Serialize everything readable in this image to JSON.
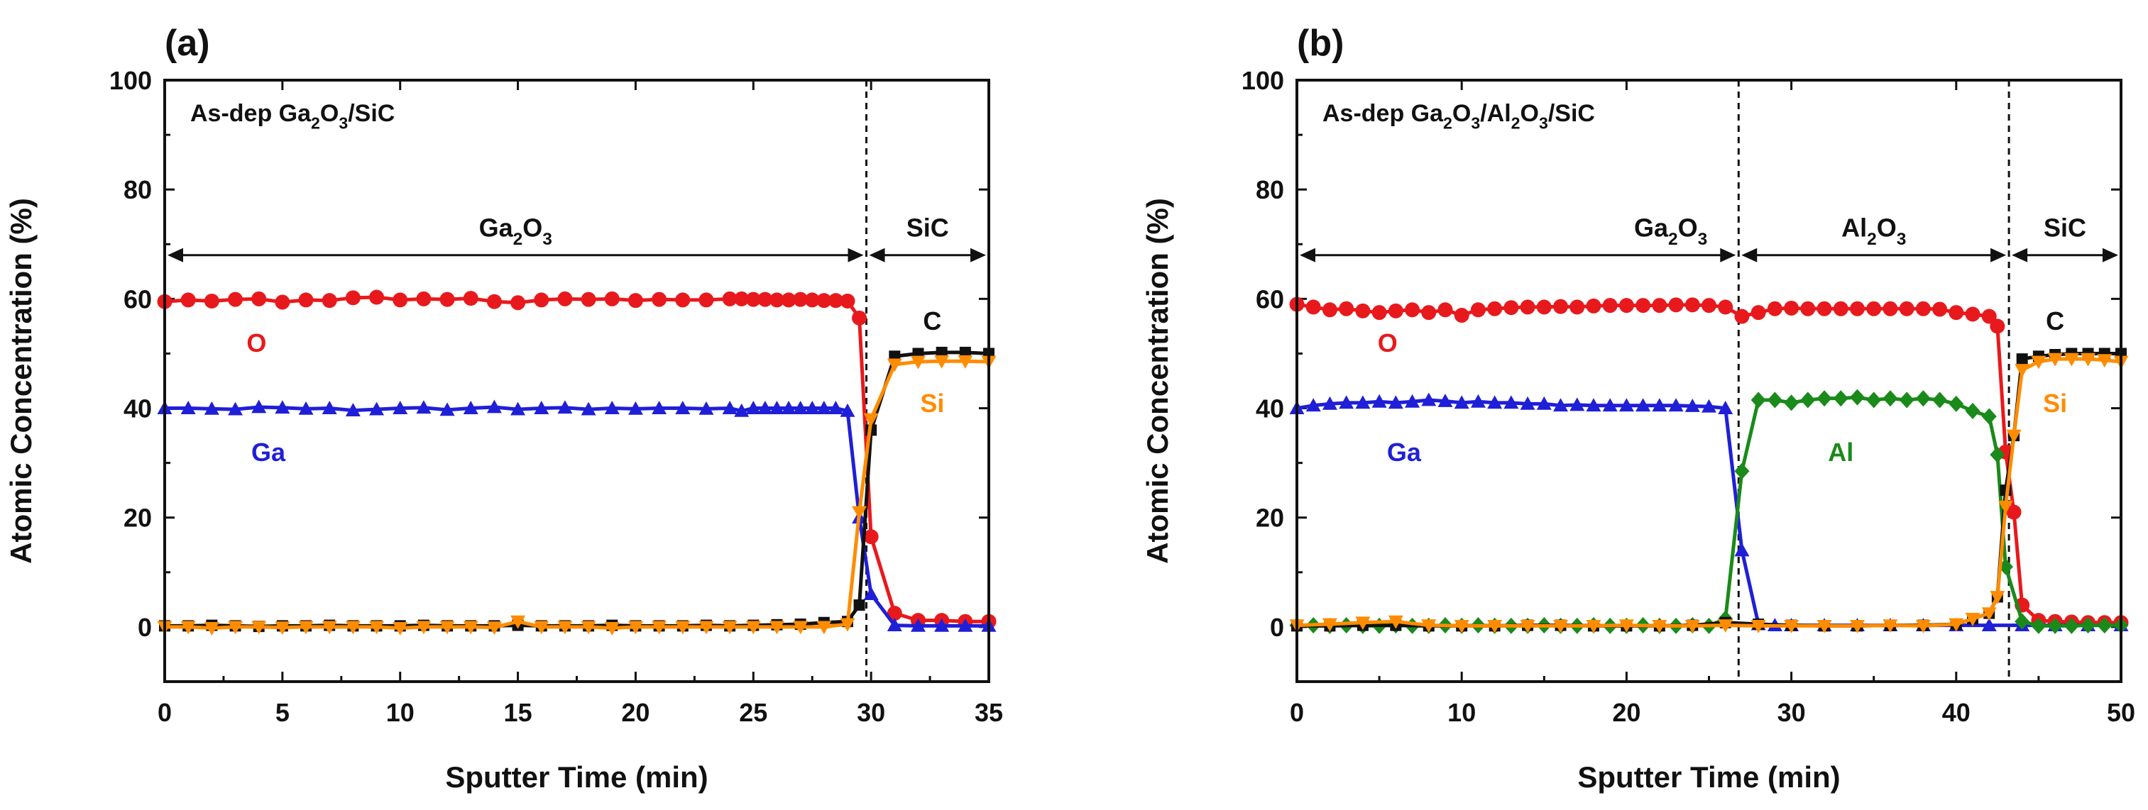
{
  "chart_data": [
    {
      "panel_label": "(a)",
      "type": "line",
      "inset_title_parts": [
        {
          "t": "As-dep Ga"
        },
        {
          "t": "2",
          "sub": true
        },
        {
          "t": "O"
        },
        {
          "t": "3",
          "sub": true
        },
        {
          "t": "/SiC"
        }
      ],
      "xlabel": "Sputter Time (min)",
      "ylabel": "Atomic Concentration (%)",
      "xlim": [
        0,
        35
      ],
      "ylim": [
        -10,
        100
      ],
      "x_ticks": [
        "0",
        "5",
        "10",
        "15",
        "20",
        "25",
        "30",
        "35"
      ],
      "y_ticks": [
        "0",
        "20",
        "40",
        "60",
        "80",
        "100"
      ],
      "x_tick_values": [
        0,
        5,
        10,
        15,
        20,
        25,
        30,
        35
      ],
      "y_tick_values": [
        0,
        20,
        40,
        60,
        80,
        100
      ],
      "boundaries": [
        29.8
      ],
      "regions": [
        {
          "parts": [
            {
              "t": "Ga"
            },
            {
              "t": "2",
              "sub": true
            },
            {
              "t": "O"
            },
            {
              "t": "3",
              "sub": true
            }
          ],
          "x_from": 0,
          "x_to": 29.8,
          "y": 68
        },
        {
          "parts": [
            {
              "t": "SiC"
            }
          ],
          "x_from": 29.8,
          "x_to": 35,
          "y": 68
        }
      ],
      "series": [
        {
          "name": "O",
          "color": "#e8191c",
          "marker": "circle",
          "x": [
            0,
            1,
            2,
            3,
            4,
            5,
            6,
            7,
            8,
            9,
            10,
            11,
            12,
            13,
            14,
            15,
            16,
            17,
            18,
            19,
            20,
            21,
            22,
            23,
            24,
            24.5,
            25,
            25.5,
            26,
            26.5,
            27,
            27.5,
            28,
            28.5,
            29,
            29.5,
            30,
            31,
            32,
            33,
            34,
            35
          ],
          "y": [
            59.5,
            59.8,
            59.6,
            59.9,
            60,
            59.4,
            59.8,
            59.7,
            60.2,
            60.3,
            59.8,
            60,
            59.9,
            60.1,
            59.5,
            59.3,
            59.8,
            60,
            59.9,
            60,
            59.7,
            59.9,
            59.8,
            59.8,
            60,
            60,
            59.9,
            59.9,
            59.8,
            59.8,
            59.9,
            59.8,
            59.7,
            59.7,
            59.6,
            56.5,
            16.5,
            2.5,
            1.2,
            1.2,
            1,
            1
          ],
          "label": "O",
          "label_at": [
            3.9,
            52
          ]
        },
        {
          "name": "Ga",
          "color": "#1f1fd8",
          "marker": "triangle",
          "x": [
            0,
            1,
            2,
            3,
            4,
            5,
            6,
            7,
            8,
            9,
            10,
            11,
            12,
            13,
            14,
            15,
            16,
            17,
            18,
            19,
            20,
            21,
            22,
            23,
            24,
            24.5,
            25,
            25.5,
            26,
            26.5,
            27,
            27.5,
            28,
            28.5,
            29,
            29.5,
            30,
            31,
            32,
            33,
            34,
            35
          ],
          "y": [
            40,
            40,
            39.9,
            39.8,
            40.2,
            40.1,
            39.9,
            40,
            39.6,
            39.8,
            40,
            40.1,
            39.7,
            40,
            40.2,
            39.8,
            40,
            40.1,
            39.8,
            40,
            39.9,
            40,
            40,
            39.9,
            40,
            39.5,
            40,
            40,
            40,
            40,
            40,
            40,
            40,
            40,
            39.5,
            20,
            6,
            0.3,
            0.2,
            0.2,
            0.2,
            0.2
          ],
          "label": "Ga",
          "label_at": [
            4.4,
            32
          ]
        },
        {
          "name": "C",
          "color": "#111111",
          "marker": "square",
          "x": [
            0,
            1,
            2,
            3,
            4,
            5,
            6,
            7,
            8,
            9,
            10,
            11,
            12,
            13,
            14,
            15,
            16,
            17,
            18,
            19,
            20,
            21,
            22,
            23,
            24,
            25,
            26,
            27,
            28,
            29,
            29.5,
            30,
            31,
            32,
            33,
            34,
            35
          ],
          "y": [
            0.2,
            0.2,
            0.3,
            0.2,
            0.1,
            0.2,
            0.2,
            0.3,
            0.2,
            0.2,
            0.2,
            0.3,
            0.2,
            0.2,
            0.2,
            0.3,
            0.2,
            0.2,
            0.2,
            0.3,
            0.2,
            0.2,
            0.2,
            0.3,
            0.2,
            0.3,
            0.4,
            0.5,
            0.8,
            1,
            4,
            36,
            49.5,
            50,
            50.2,
            50.2,
            50
          ],
          "label": "C",
          "label_at": [
            32.6,
            56
          ]
        },
        {
          "name": "Si",
          "color": "#ff8c00",
          "marker": "triangle-down",
          "x": [
            0,
            1,
            2,
            3,
            4,
            5,
            6,
            7,
            8,
            9,
            10,
            11,
            12,
            13,
            14,
            15,
            16,
            17,
            18,
            19,
            20,
            21,
            22,
            23,
            24,
            25,
            26,
            27,
            28,
            29,
            29.5,
            30,
            31,
            32,
            33,
            34,
            35
          ],
          "y": [
            0,
            0,
            -0.2,
            0,
            0,
            -0.1,
            0,
            0,
            0,
            0,
            -0.2,
            0,
            0,
            0,
            -0.1,
            1,
            0,
            0,
            0,
            -0.2,
            0,
            0,
            0,
            0,
            0,
            0,
            0,
            0,
            0,
            0.5,
            21,
            38,
            48,
            48.5,
            48.6,
            48.6,
            48.5
          ],
          "label": "Si",
          "label_at": [
            32.6,
            41
          ]
        }
      ]
    },
    {
      "panel_label": "(b)",
      "type": "line",
      "inset_title_parts": [
        {
          "t": "As-dep Ga"
        },
        {
          "t": "2",
          "sub": true
        },
        {
          "t": "O"
        },
        {
          "t": "3",
          "sub": true
        },
        {
          "t": "/Al"
        },
        {
          "t": "2",
          "sub": true
        },
        {
          "t": "O"
        },
        {
          "t": "3",
          "sub": true
        },
        {
          "t": "/SiC"
        }
      ],
      "xlabel": "Sputter Time (min)",
      "ylabel": "Atomic Concentration (%)",
      "xlim": [
        0,
        50
      ],
      "ylim": [
        -10,
        100
      ],
      "x_ticks": [
        "0",
        "10",
        "20",
        "30",
        "40",
        "50"
      ],
      "y_ticks": [
        "0",
        "20",
        "40",
        "60",
        "80",
        "100"
      ],
      "x_tick_values": [
        0,
        10,
        20,
        30,
        40,
        50
      ],
      "y_tick_values": [
        0,
        20,
        40,
        60,
        80,
        100
      ],
      "boundaries": [
        26.8,
        43.2
      ],
      "regions": [
        {
          "parts": [
            {
              "t": "Ga"
            },
            {
              "t": "2",
              "sub": true
            },
            {
              "t": "O"
            },
            {
              "t": "3",
              "sub": true
            }
          ],
          "x_from": 0,
          "x_to": 26.8,
          "y": 68,
          "align": "end"
        },
        {
          "parts": [
            {
              "t": "Al"
            },
            {
              "t": "2",
              "sub": true
            },
            {
              "t": "O"
            },
            {
              "t": "3",
              "sub": true
            }
          ],
          "x_from": 26.8,
          "x_to": 43.2,
          "y": 68
        },
        {
          "parts": [
            {
              "t": "SiC"
            }
          ],
          "x_from": 43.2,
          "x_to": 50,
          "y": 68
        }
      ],
      "series": [
        {
          "name": "O",
          "color": "#e8191c",
          "marker": "circle",
          "x": [
            0,
            1,
            2,
            3,
            4,
            5,
            6,
            7,
            8,
            9,
            10,
            11,
            12,
            13,
            14,
            15,
            16,
            17,
            18,
            19,
            20,
            21,
            22,
            23,
            24,
            25,
            26,
            27,
            28,
            29,
            30,
            31,
            32,
            33,
            34,
            35,
            36,
            37,
            38,
            39,
            40,
            41,
            42,
            42.5,
            43,
            43.5,
            44,
            45,
            46,
            47,
            48,
            49,
            50
          ],
          "y": [
            59,
            58.5,
            58,
            58.2,
            57.8,
            57.5,
            57.8,
            58,
            57.5,
            58,
            57,
            58,
            58.2,
            58.4,
            58.5,
            58.5,
            58.6,
            58.5,
            58.7,
            58.8,
            58.8,
            58.8,
            58.8,
            58.9,
            58.9,
            58.8,
            58.5,
            56.8,
            57.5,
            58.2,
            58.3,
            58.2,
            58.2,
            58.2,
            58.2,
            58.2,
            58.2,
            58.2,
            58.2,
            58.1,
            57.5,
            57.2,
            56.8,
            55,
            32,
            21,
            4,
            1.2,
            1,
            0.9,
            0.8,
            0.8,
            0.8
          ],
          "label": "O",
          "label_at": [
            5.5,
            52
          ]
        },
        {
          "name": "Ga",
          "color": "#1f1fd8",
          "marker": "triangle",
          "x": [
            0,
            1,
            2,
            3,
            4,
            5,
            6,
            7,
            8,
            9,
            10,
            11,
            12,
            13,
            14,
            15,
            16,
            17,
            18,
            19,
            20,
            21,
            22,
            23,
            24,
            25,
            26,
            27,
            28,
            29,
            30,
            32,
            34,
            36,
            38,
            40,
            42,
            44,
            46,
            48,
            50
          ],
          "y": [
            40,
            40.5,
            40.8,
            41,
            41,
            41.2,
            41,
            41.2,
            41.5,
            41.3,
            41,
            41.2,
            41,
            41,
            40.8,
            40.8,
            40.5,
            40.6,
            40.5,
            40.5,
            40.5,
            40.5,
            40.5,
            40.5,
            40.4,
            40.3,
            40,
            14,
            0.5,
            0.3,
            0.3,
            0.3,
            0.3,
            0.3,
            0.3,
            0.3,
            0.3,
            0.3,
            0.3,
            0.3,
            0.3
          ],
          "label": "Ga",
          "label_at": [
            6.5,
            32
          ]
        },
        {
          "name": "Al",
          "color": "#1a8a1a",
          "marker": "diamond",
          "x": [
            0,
            1,
            2,
            3,
            4,
            5,
            6,
            7,
            8,
            9,
            10,
            11,
            12,
            13,
            14,
            15,
            16,
            17,
            18,
            19,
            20,
            21,
            22,
            23,
            24,
            25,
            26,
            27,
            28,
            29,
            30,
            31,
            32,
            33,
            34,
            35,
            36,
            37,
            38,
            39,
            40,
            41,
            42,
            42.5,
            43,
            44,
            45,
            46,
            47,
            48,
            49,
            50
          ],
          "y": [
            0.3,
            0.3,
            0.2,
            0.3,
            0.2,
            0.2,
            0.3,
            0.2,
            0.2,
            0.3,
            0.2,
            0.3,
            0.2,
            0.2,
            0.2,
            0.3,
            0.2,
            0.2,
            0.3,
            0.2,
            0.2,
            0.3,
            0.2,
            0.2,
            0.3,
            0.2,
            1.5,
            28.5,
            41.5,
            41.5,
            41,
            41.5,
            41.8,
            41.8,
            42,
            41.5,
            41.8,
            41.5,
            41.8,
            41.5,
            40.8,
            39.5,
            38.5,
            31.5,
            11,
            1,
            0.2,
            0.2,
            0.2,
            0.3,
            0.3,
            0.3
          ],
          "label": "Al",
          "label_at": [
            33,
            32
          ]
        },
        {
          "name": "C",
          "color": "#111111",
          "marker": "square",
          "x": [
            0,
            2,
            4,
            6,
            8,
            10,
            12,
            14,
            16,
            18,
            20,
            22,
            24,
            26,
            28,
            30,
            32,
            34,
            36,
            38,
            40,
            41,
            42,
            42.5,
            43,
            43.5,
            44,
            45,
            46,
            47,
            48,
            49,
            50
          ],
          "y": [
            0.2,
            0.2,
            0.3,
            0.3,
            0.2,
            0.2,
            0.2,
            0.3,
            0.3,
            0.2,
            0.2,
            0.2,
            0.3,
            0.8,
            0.5,
            0.3,
            0.2,
            0.2,
            0.3,
            0.3,
            0.5,
            1.5,
            2.5,
            5.5,
            25,
            35,
            49,
            49.5,
            49.8,
            50,
            50,
            50,
            50
          ],
          "label": "C",
          "label_at": [
            46,
            56
          ]
        },
        {
          "name": "Si",
          "color": "#ff8c00",
          "marker": "triangle-down",
          "x": [
            0,
            2,
            4,
            6,
            8,
            10,
            12,
            14,
            16,
            18,
            20,
            22,
            24,
            26,
            28,
            30,
            32,
            34,
            36,
            38,
            40,
            41,
            42,
            42.5,
            43,
            43.5,
            44,
            45,
            46,
            47,
            48,
            49,
            50
          ],
          "y": [
            0.3,
            0.5,
            0.8,
            1,
            0.3,
            0.2,
            0.2,
            0.2,
            0.2,
            0.2,
            0.3,
            0.2,
            0.2,
            0.3,
            0.2,
            0.2,
            0.2,
            0.2,
            0.3,
            0.2,
            0.5,
            1.5,
            2.5,
            5.5,
            22,
            35,
            47,
            48.5,
            49,
            49,
            49,
            48.8,
            48.5
          ],
          "label": "Si",
          "label_at": [
            46,
            41
          ]
        }
      ]
    }
  ]
}
